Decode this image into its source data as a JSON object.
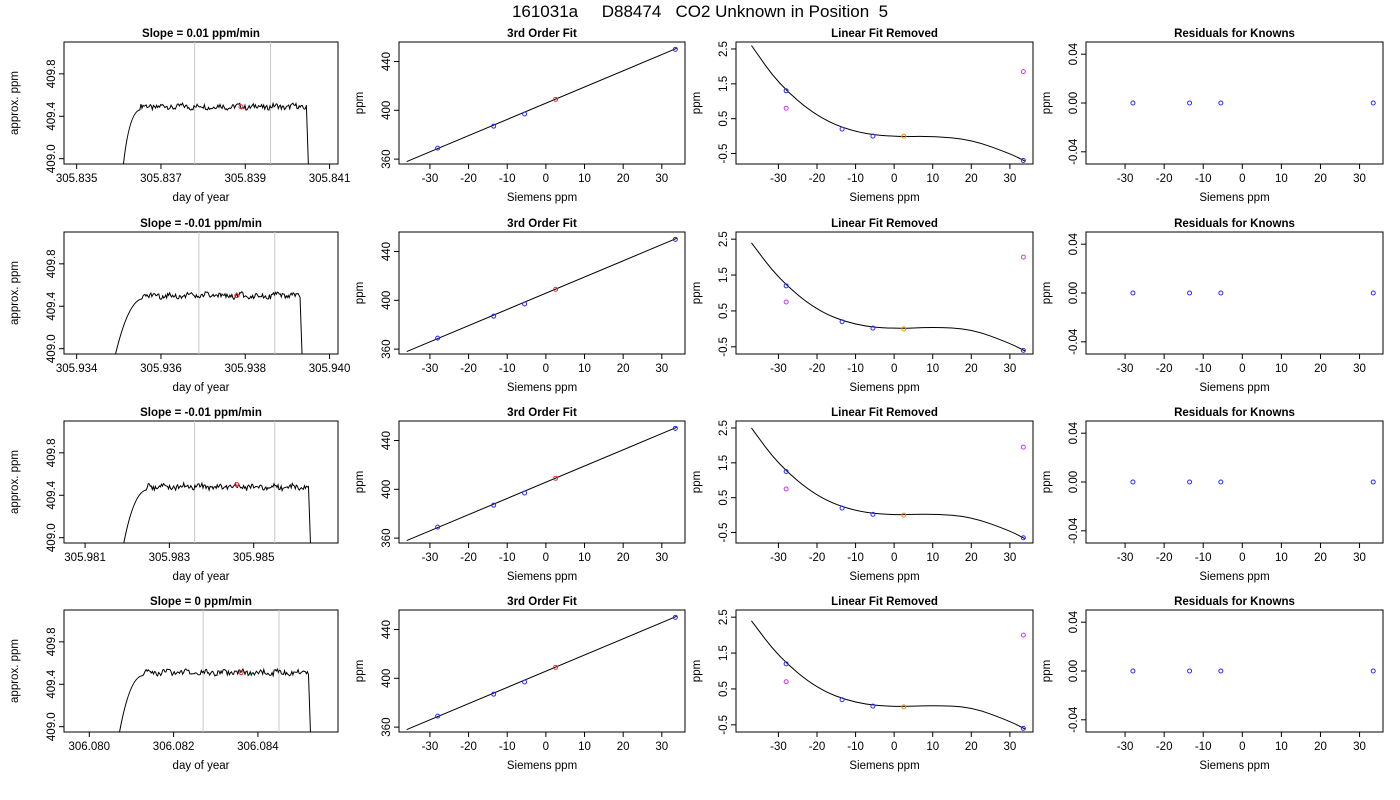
{
  "page_title": "161031a     D88474   CO2 Unknown in Position  5",
  "chart_data": [
    {
      "type": "line",
      "title": "Slope =  0.01  ppm/min",
      "xlabel": "day of year",
      "ylabel": "approx. ppm",
      "xlim": [
        305.8347,
        305.8412
      ],
      "ylim": [
        408.95,
        410.1
      ],
      "xticks": [
        305.835,
        305.837,
        305.839,
        305.841
      ],
      "xticklabels": [
        "305.835",
        "305.837",
        "305.839",
        "305.841"
      ],
      "yticks": [
        409.0,
        409.4,
        409.8
      ],
      "yticklabels": [
        "409.0",
        "409.4",
        "409.8"
      ],
      "vlines": [
        305.8378,
        305.8396
      ],
      "highlight_point": {
        "x": 305.8389,
        "y": 409.49
      },
      "trace": {
        "start_x": 305.8361,
        "plateau_x": 305.8363,
        "end_plateau_x": 305.84045,
        "end_x": 305.8405,
        "level": 409.49
      }
    },
    {
      "type": "scatter",
      "title": "3rd Order Fit",
      "xlabel": "Siemens ppm",
      "ylabel": "ppm",
      "xlim": [
        -38,
        36
      ],
      "ylim": [
        356,
        456
      ],
      "xticks": [
        -30,
        -20,
        -10,
        0,
        10,
        20,
        30
      ],
      "yticks": [
        360,
        400,
        440
      ],
      "knowns": [
        {
          "x": -28,
          "y": 369
        },
        {
          "x": -13.5,
          "y": 387
        },
        {
          "x": -5.5,
          "y": 397
        },
        {
          "x": 33.5,
          "y": 450
        }
      ],
      "unknown": {
        "x": 2.5,
        "y": 409
      },
      "fit_line": [
        {
          "x": -36,
          "y": 358
        },
        {
          "x": 34,
          "y": 451
        }
      ]
    },
    {
      "type": "scatter",
      "title": "Linear Fit Removed",
      "xlabel": "Siemens ppm",
      "ylabel": "ppm",
      "xlim": [
        -41,
        36
      ],
      "ylim": [
        -0.8,
        2.7
      ],
      "xticks": [
        -30,
        -20,
        -10,
        0,
        10,
        20,
        30
      ],
      "yticks": [
        -0.5,
        0.5,
        1.5,
        2.5
      ],
      "yticklabels": [
        "-0.5",
        "0.5",
        "1.5",
        "2.5"
      ],
      "knowns": [
        {
          "x": -28,
          "y": 1.3
        },
        {
          "x": -13.5,
          "y": 0.2
        },
        {
          "x": -5.5,
          "y": 0.0
        },
        {
          "x": 33.5,
          "y": -0.7
        }
      ],
      "unknown": {
        "x": 2.5,
        "y": 0.0
      },
      "linear_residuals": [
        {
          "x": -28,
          "y": 0.8
        },
        {
          "x": 33.5,
          "y": 1.85
        }
      ],
      "curve": [
        {
          "x": -37,
          "y": 2.6
        },
        {
          "x": -30,
          "y": 1.5
        },
        {
          "x": -20,
          "y": 0.55
        },
        {
          "x": -10,
          "y": 0.1
        },
        {
          "x": 0,
          "y": -0.02
        },
        {
          "x": 10,
          "y": 0.0
        },
        {
          "x": 20,
          "y": -0.1
        },
        {
          "x": 30,
          "y": -0.5
        },
        {
          "x": 34,
          "y": -0.72
        }
      ]
    },
    {
      "type": "scatter",
      "title": "Residuals for Knowns",
      "xlabel": "Siemens ppm",
      "ylabel": "ppm",
      "xlim": [
        -40,
        36
      ],
      "ylim": [
        -0.05,
        0.05
      ],
      "xticks": [
        -30,
        -20,
        -10,
        0,
        10,
        20,
        30
      ],
      "yticks": [
        -0.04,
        0.0,
        0.04
      ],
      "yticklabels": [
        "-0.04",
        "0.00",
        "0.04"
      ],
      "knowns": [
        {
          "x": -28,
          "y": 0
        },
        {
          "x": -13.5,
          "y": 0
        },
        {
          "x": -5.5,
          "y": 0
        },
        {
          "x": 33.5,
          "y": 0
        }
      ]
    },
    {
      "type": "line",
      "title": "Slope =  -0.01  ppm/min",
      "xlabel": "day of year",
      "ylabel": "approx. ppm",
      "xlim": [
        305.9337,
        305.9402
      ],
      "ylim": [
        408.95,
        410.1
      ],
      "xticks": [
        305.934,
        305.936,
        305.938,
        305.94
      ],
      "xticklabels": [
        "305.934",
        "305.936",
        "305.938",
        "305.940"
      ],
      "yticks": [
        409.0,
        409.4,
        409.8
      ],
      "yticklabels": [
        "409.0",
        "409.4",
        "409.8"
      ],
      "vlines": [
        305.9369,
        305.9387
      ],
      "highlight_point": {
        "x": 305.9378,
        "y": 409.5
      },
      "trace": {
        "start_x": 305.9349,
        "plateau_x": 305.93535,
        "end_plateau_x": 305.9393,
        "end_x": 305.93935,
        "level": 409.5
      }
    },
    {
      "type": "scatter",
      "title": "3rd Order Fit",
      "xlabel": "Siemens ppm",
      "ylabel": "ppm",
      "xlim": [
        -38,
        36
      ],
      "ylim": [
        356,
        456
      ],
      "xticks": [
        -30,
        -20,
        -10,
        0,
        10,
        20,
        30
      ],
      "yticks": [
        360,
        400,
        440
      ],
      "knowns": [
        {
          "x": -28,
          "y": 369
        },
        {
          "x": -13.5,
          "y": 387
        },
        {
          "x": -5.5,
          "y": 397
        },
        {
          "x": 33.5,
          "y": 450
        }
      ],
      "unknown": {
        "x": 2.5,
        "y": 409
      },
      "fit_line": [
        {
          "x": -36,
          "y": 358
        },
        {
          "x": 34,
          "y": 451
        }
      ]
    },
    {
      "type": "scatter",
      "title": "Linear Fit Removed",
      "xlabel": "Siemens ppm",
      "ylabel": "ppm",
      "xlim": [
        -41,
        36
      ],
      "ylim": [
        -0.7,
        2.7
      ],
      "xticks": [
        -30,
        -20,
        -10,
        0,
        10,
        20,
        30
      ],
      "yticks": [
        -0.5,
        0.5,
        1.5,
        2.5
      ],
      "yticklabels": [
        "-0.5",
        "0.5",
        "1.5",
        "2.5"
      ],
      "knowns": [
        {
          "x": -28,
          "y": 1.2
        },
        {
          "x": -13.5,
          "y": 0.2
        },
        {
          "x": -5.5,
          "y": 0.02
        },
        {
          "x": 33.5,
          "y": -0.6
        }
      ],
      "unknown": {
        "x": 2.5,
        "y": 0.0
      },
      "linear_residuals": [
        {
          "x": -28,
          "y": 0.75
        },
        {
          "x": 33.5,
          "y": 2.0
        }
      ],
      "curve": [
        {
          "x": -37,
          "y": 2.4
        },
        {
          "x": -30,
          "y": 1.4
        },
        {
          "x": -20,
          "y": 0.5
        },
        {
          "x": -10,
          "y": 0.1
        },
        {
          "x": 0,
          "y": 0.0
        },
        {
          "x": 10,
          "y": 0.05
        },
        {
          "x": 20,
          "y": 0.0
        },
        {
          "x": 30,
          "y": -0.4
        },
        {
          "x": 34,
          "y": -0.62
        }
      ]
    },
    {
      "type": "scatter",
      "title": "Residuals for Knowns",
      "xlabel": "Siemens ppm",
      "ylabel": "ppm",
      "xlim": [
        -40,
        36
      ],
      "ylim": [
        -0.05,
        0.05
      ],
      "xticks": [
        -30,
        -20,
        -10,
        0,
        10,
        20,
        30
      ],
      "yticks": [
        -0.04,
        0.0,
        0.04
      ],
      "yticklabels": [
        "-0.04",
        "0.00",
        "0.04"
      ],
      "knowns": [
        {
          "x": -28,
          "y": 0
        },
        {
          "x": -13.5,
          "y": 0
        },
        {
          "x": -5.5,
          "y": 0
        },
        {
          "x": 33.5,
          "y": 0
        }
      ]
    },
    {
      "type": "line",
      "title": "Slope =  -0.01  ppm/min",
      "xlabel": "day of year",
      "ylabel": "approx. ppm",
      "xlim": [
        305.9805,
        305.987
      ],
      "ylim": [
        408.95,
        410.1
      ],
      "xticks": [
        305.981,
        305.983,
        305.985
      ],
      "xticklabels": [
        "305.981",
        "305.983",
        "305.985"
      ],
      "yticks": [
        409.0,
        409.4,
        409.8
      ],
      "yticklabels": [
        "409.0",
        "409.4",
        "409.8"
      ],
      "vlines": [
        305.9836,
        305.9855
      ],
      "highlight_point": {
        "x": 305.9846,
        "y": 409.5
      },
      "trace": {
        "start_x": 305.9819,
        "plateau_x": 305.98225,
        "end_plateau_x": 305.9863,
        "end_x": 305.98635,
        "level": 409.48
      }
    },
    {
      "type": "scatter",
      "title": "3rd Order Fit",
      "xlabel": "Siemens ppm",
      "ylabel": "ppm",
      "xlim": [
        -38,
        36
      ],
      "ylim": [
        356,
        456
      ],
      "xticks": [
        -30,
        -20,
        -10,
        0,
        10,
        20,
        30
      ],
      "yticks": [
        360,
        400,
        440
      ],
      "knowns": [
        {
          "x": -28,
          "y": 369
        },
        {
          "x": -13.5,
          "y": 387
        },
        {
          "x": -5.5,
          "y": 397
        },
        {
          "x": 33.5,
          "y": 450
        }
      ],
      "unknown": {
        "x": 2.5,
        "y": 409
      },
      "fit_line": [
        {
          "x": -36,
          "y": 358
        },
        {
          "x": 34,
          "y": 451
        }
      ]
    },
    {
      "type": "scatter",
      "title": "Linear Fit Removed",
      "xlabel": "Siemens ppm",
      "ylabel": "ppm",
      "xlim": [
        -41,
        36
      ],
      "ylim": [
        -0.8,
        2.7
      ],
      "xticks": [
        -30,
        -20,
        -10,
        0,
        10,
        20,
        30
      ],
      "yticks": [
        -0.5,
        0.5,
        1.5,
        2.5
      ],
      "yticklabels": [
        "-0.5",
        "0.5",
        "1.5",
        "2.5"
      ],
      "knowns": [
        {
          "x": -28,
          "y": 1.25
        },
        {
          "x": -13.5,
          "y": 0.2
        },
        {
          "x": -5.5,
          "y": 0.02
        },
        {
          "x": 33.5,
          "y": -0.65
        }
      ],
      "unknown": {
        "x": 2.5,
        "y": 0.0
      },
      "linear_residuals": [
        {
          "x": -28,
          "y": 0.75
        },
        {
          "x": 33.5,
          "y": 1.95
        }
      ],
      "curve": [
        {
          "x": -37,
          "y": 2.5
        },
        {
          "x": -30,
          "y": 1.45
        },
        {
          "x": -20,
          "y": 0.52
        },
        {
          "x": -10,
          "y": 0.1
        },
        {
          "x": 0,
          "y": 0.0
        },
        {
          "x": 10,
          "y": 0.04
        },
        {
          "x": 20,
          "y": -0.05
        },
        {
          "x": 30,
          "y": -0.45
        },
        {
          "x": 34,
          "y": -0.68
        }
      ]
    },
    {
      "type": "scatter",
      "title": "Residuals for Knowns",
      "xlabel": "Siemens ppm",
      "ylabel": "ppm",
      "xlim": [
        -40,
        36
      ],
      "ylim": [
        -0.05,
        0.05
      ],
      "xticks": [
        -30,
        -20,
        -10,
        0,
        10,
        20,
        30
      ],
      "yticks": [
        -0.04,
        0.0,
        0.04
      ],
      "yticklabels": [
        "-0.04",
        "0.00",
        "0.04"
      ],
      "knowns": [
        {
          "x": -28,
          "y": 0
        },
        {
          "x": -13.5,
          "y": 0
        },
        {
          "x": -5.5,
          "y": 0
        },
        {
          "x": 33.5,
          "y": 0
        }
      ]
    },
    {
      "type": "line",
      "title": "Slope =  0  ppm/min",
      "xlabel": "day of year",
      "ylabel": "approx. ppm",
      "xlim": [
        306.0794,
        306.0859
      ],
      "ylim": [
        408.95,
        410.1
      ],
      "xticks": [
        306.08,
        306.082,
        306.084
      ],
      "xticklabels": [
        "306.080",
        "306.082",
        "306.084"
      ],
      "yticks": [
        409.0,
        409.4,
        409.8
      ],
      "yticklabels": [
        "409.0",
        "409.4",
        "409.8"
      ],
      "vlines": [
        306.0827,
        306.0845
      ],
      "highlight_point": {
        "x": 306.0836,
        "y": 409.51
      },
      "trace": {
        "start_x": 306.0807,
        "plateau_x": 306.08105,
        "end_plateau_x": 306.0852,
        "end_x": 306.08525,
        "level": 409.51
      }
    },
    {
      "type": "scatter",
      "title": "3rd Order Fit",
      "xlabel": "Siemens ppm",
      "ylabel": "ppm",
      "xlim": [
        -38,
        36
      ],
      "ylim": [
        356,
        456
      ],
      "xticks": [
        -30,
        -20,
        -10,
        0,
        10,
        20,
        30
      ],
      "yticks": [
        360,
        400,
        440
      ],
      "knowns": [
        {
          "x": -28,
          "y": 369
        },
        {
          "x": -13.5,
          "y": 387
        },
        {
          "x": -5.5,
          "y": 397
        },
        {
          "x": 33.5,
          "y": 450
        }
      ],
      "unknown": {
        "x": 2.5,
        "y": 409
      },
      "fit_line": [
        {
          "x": -36,
          "y": 358
        },
        {
          "x": 34,
          "y": 451
        }
      ]
    },
    {
      "type": "scatter",
      "title": "Linear Fit Removed",
      "xlabel": "Siemens ppm",
      "ylabel": "ppm",
      "xlim": [
        -41,
        36
      ],
      "ylim": [
        -0.7,
        2.7
      ],
      "xticks": [
        -30,
        -20,
        -10,
        0,
        10,
        20,
        30
      ],
      "yticks": [
        -0.5,
        0.5,
        1.5,
        2.5
      ],
      "yticklabels": [
        "-0.5",
        "0.5",
        "1.5",
        "2.5"
      ],
      "knowns": [
        {
          "x": -28,
          "y": 1.2
        },
        {
          "x": -13.5,
          "y": 0.2
        },
        {
          "x": -5.5,
          "y": 0.02
        },
        {
          "x": 33.5,
          "y": -0.6
        }
      ],
      "unknown": {
        "x": 2.5,
        "y": 0.0
      },
      "linear_residuals": [
        {
          "x": -28,
          "y": 0.7
        },
        {
          "x": 33.5,
          "y": 2.0
        }
      ],
      "curve": [
        {
          "x": -37,
          "y": 2.4
        },
        {
          "x": -30,
          "y": 1.4
        },
        {
          "x": -20,
          "y": 0.5
        },
        {
          "x": -10,
          "y": 0.1
        },
        {
          "x": 0,
          "y": 0.0
        },
        {
          "x": 10,
          "y": 0.04
        },
        {
          "x": 20,
          "y": 0.0
        },
        {
          "x": 30,
          "y": -0.4
        },
        {
          "x": 34,
          "y": -0.62
        }
      ]
    },
    {
      "type": "scatter",
      "title": "Residuals for Knowns",
      "xlabel": "Siemens ppm",
      "ylabel": "ppm",
      "xlim": [
        -40,
        36
      ],
      "ylim": [
        -0.05,
        0.05
      ],
      "xticks": [
        -30,
        -20,
        -10,
        0,
        10,
        20,
        30
      ],
      "yticks": [
        -0.04,
        0.0,
        0.04
      ],
      "yticklabels": [
        "-0.04",
        "0.00",
        "0.04"
      ],
      "knowns": [
        {
          "x": -28,
          "y": 0
        },
        {
          "x": -13.5,
          "y": 0
        },
        {
          "x": -5.5,
          "y": 0
        },
        {
          "x": 33.5,
          "y": 0
        }
      ]
    }
  ],
  "colors": {
    "known": "#2a2aff",
    "unknown": "#ff2a2a",
    "unknown_fit": "#ff8c00",
    "linear_residual": "#cc33ff",
    "vline": "#c8c8c8",
    "axis": "#000000"
  }
}
